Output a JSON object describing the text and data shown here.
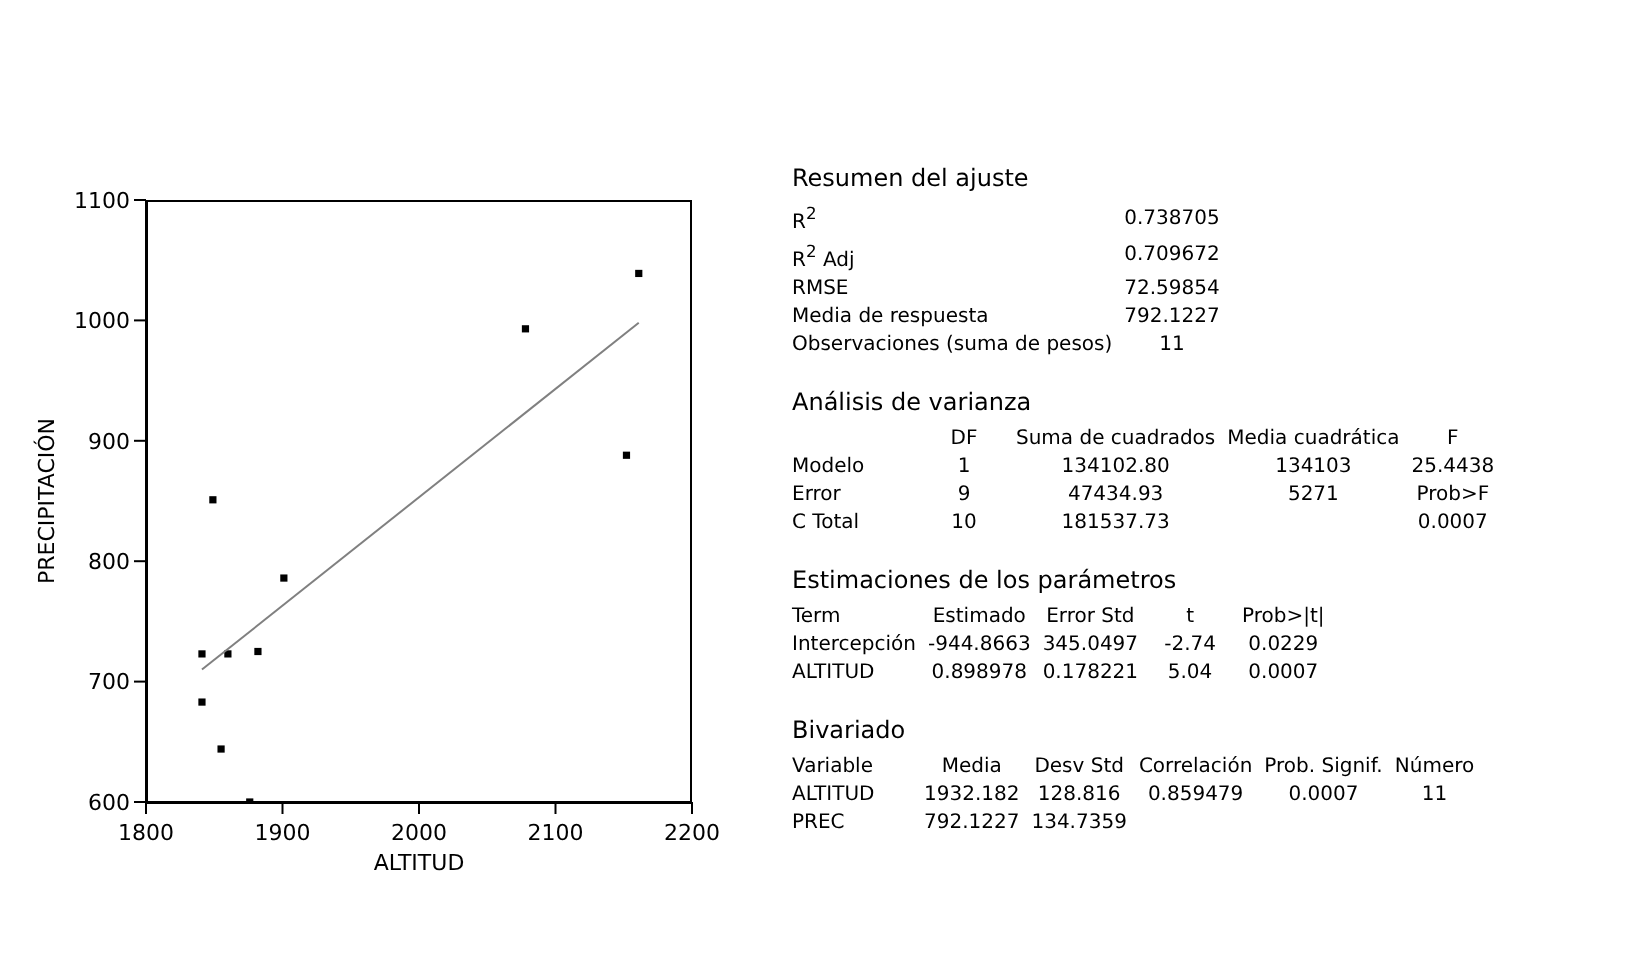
{
  "chart_data": [
    {
      "type": "scatter",
      "xlabel": "ALTITUD",
      "ylabel": "PRECIPITACIÓN",
      "xlim": [
        1800,
        2200
      ],
      "xticks": [
        1800,
        1900,
        2000,
        2100,
        2200
      ],
      "ylim": [
        600,
        1100
      ],
      "yticks": [
        600,
        700,
        800,
        900,
        1000,
        1100
      ],
      "marker": "square",
      "series": [
        {
          "color": "#000000",
          "x": [
            1841,
            1841,
            1849,
            1855,
            1860,
            1876,
            1882,
            1901,
            2078,
            2152,
            2161
          ],
          "values": [
            723,
            683,
            851,
            644,
            723,
            600,
            725,
            786,
            993,
            888,
            1039
          ]
        },
        {
          "type": "line",
          "color": "#808080",
          "marker": "none",
          "x": [
            1841,
            2161
          ],
          "values": [
            710,
            998
          ]
        }
      ]
    },
    {
      "type": "other",
      "annotations": [
        "Resumen del ajuste",
        "R$^{2}$\t0.738705",
        "R$^{2}$ Adj\t0.709672",
        "RMSE\t72.59854",
        "Media de respuesta\t792.1227",
        "Observaciones (suma de pesos)\t11",
        "Análisis de varianza",
        "\tDF\tSuma de cuadrados\tMedia cuadrática\tF",
        "Modelo\t1\t134102.80\t134103\t25.4438",
        "Error\t9\t47434.93\t5271\tProb>F",
        "C Total\t10\t181537.73\t\t0.0007",
        "Estimaciones de los parámetros",
        "Term\tEstimado\tError Std\tt\tProb>|t|",
        "Intercepción\t-944.8663\t345.0497\t-2.74\t0.0229",
        "ALTITUD\t0.898978\t0.178221\t5.04\t0.0007",
        "Bivariado",
        "Variable\tMedia\tDesv Std\tCorrelación\tProb. Signif.\tNúmero",
        "ALTITUD\t1932.182\t128.816\t0.859479\t0.0007\t11",
        "PREC\t792.1227\t134.7359"
      ]
    }
  ]
}
